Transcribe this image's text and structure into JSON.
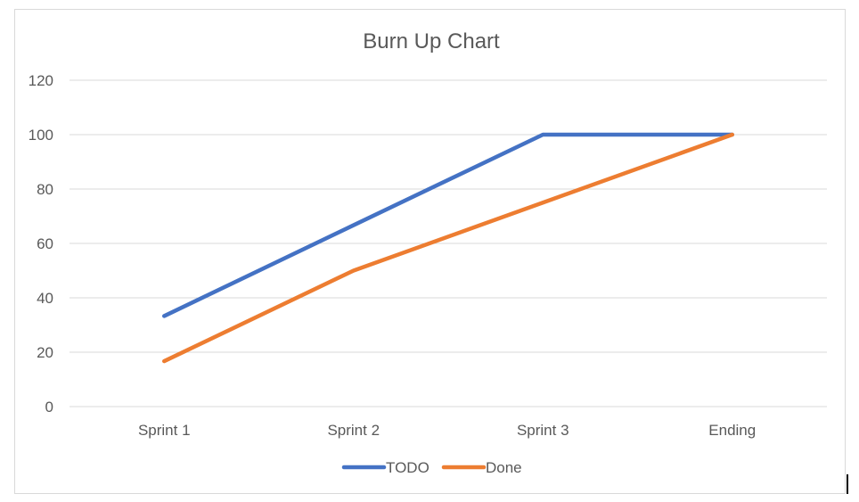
{
  "chart_data": {
    "type": "line",
    "title": "Burn Up Chart",
    "xlabel": "",
    "ylabel": "",
    "categories": [
      "Sprint 1",
      "Sprint 2",
      "Sprint 3",
      "Ending"
    ],
    "ylim": [
      0,
      120
    ],
    "yticks": [
      0,
      20,
      40,
      60,
      80,
      100,
      120
    ],
    "ytick_labels": [
      "0",
      "20",
      "40",
      "60",
      "80",
      "100",
      "120"
    ],
    "grid": true,
    "legend_position": "bottom",
    "series": [
      {
        "name": "TODO",
        "color": "#4472C4",
        "values": [
          33.3,
          66.7,
          100,
          100
        ]
      },
      {
        "name": "Done",
        "color": "#ED7D31",
        "values": [
          16.7,
          50,
          75,
          100
        ]
      }
    ]
  }
}
